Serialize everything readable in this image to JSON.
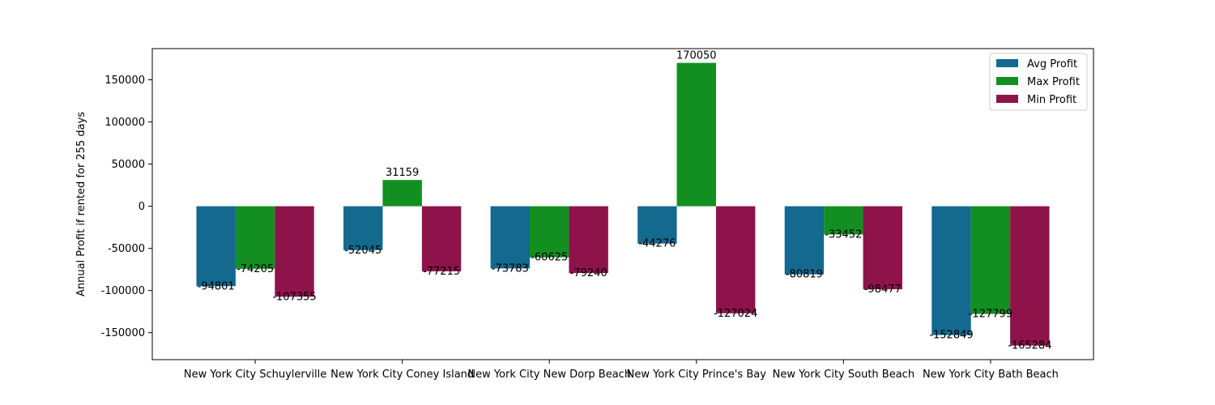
{
  "chart_data": {
    "type": "bar",
    "title": "",
    "xlabel": "",
    "ylabel": "Annual Profit if rented for 255 days",
    "categories": [
      "New York City Schuylerville",
      "New York City Coney Island",
      "New York City New Dorp Beach",
      "New York City Prince's Bay",
      "New York City South Beach",
      "New York City Bath Beach"
    ],
    "series": [
      {
        "name": "Avg Profit",
        "color": "#13698e",
        "values": [
          -94801,
          -52045,
          -73783,
          -44276,
          -80819,
          -152849
        ]
      },
      {
        "name": "Max Profit",
        "color": "#138e21",
        "values": [
          -74205,
          31159,
          -60625,
          170050,
          -33452,
          -127799
        ]
      },
      {
        "name": "Min Profit",
        "color": "#8e134b",
        "values": [
          -107355,
          -77215,
          -79240,
          -127024,
          -98477,
          -165284
        ]
      }
    ],
    "ylim": [
      -182000,
      187000
    ],
    "yticks": [
      -150000,
      -100000,
      -50000,
      0,
      50000,
      100000,
      150000
    ],
    "grid": false,
    "legend_position": "top-right"
  }
}
